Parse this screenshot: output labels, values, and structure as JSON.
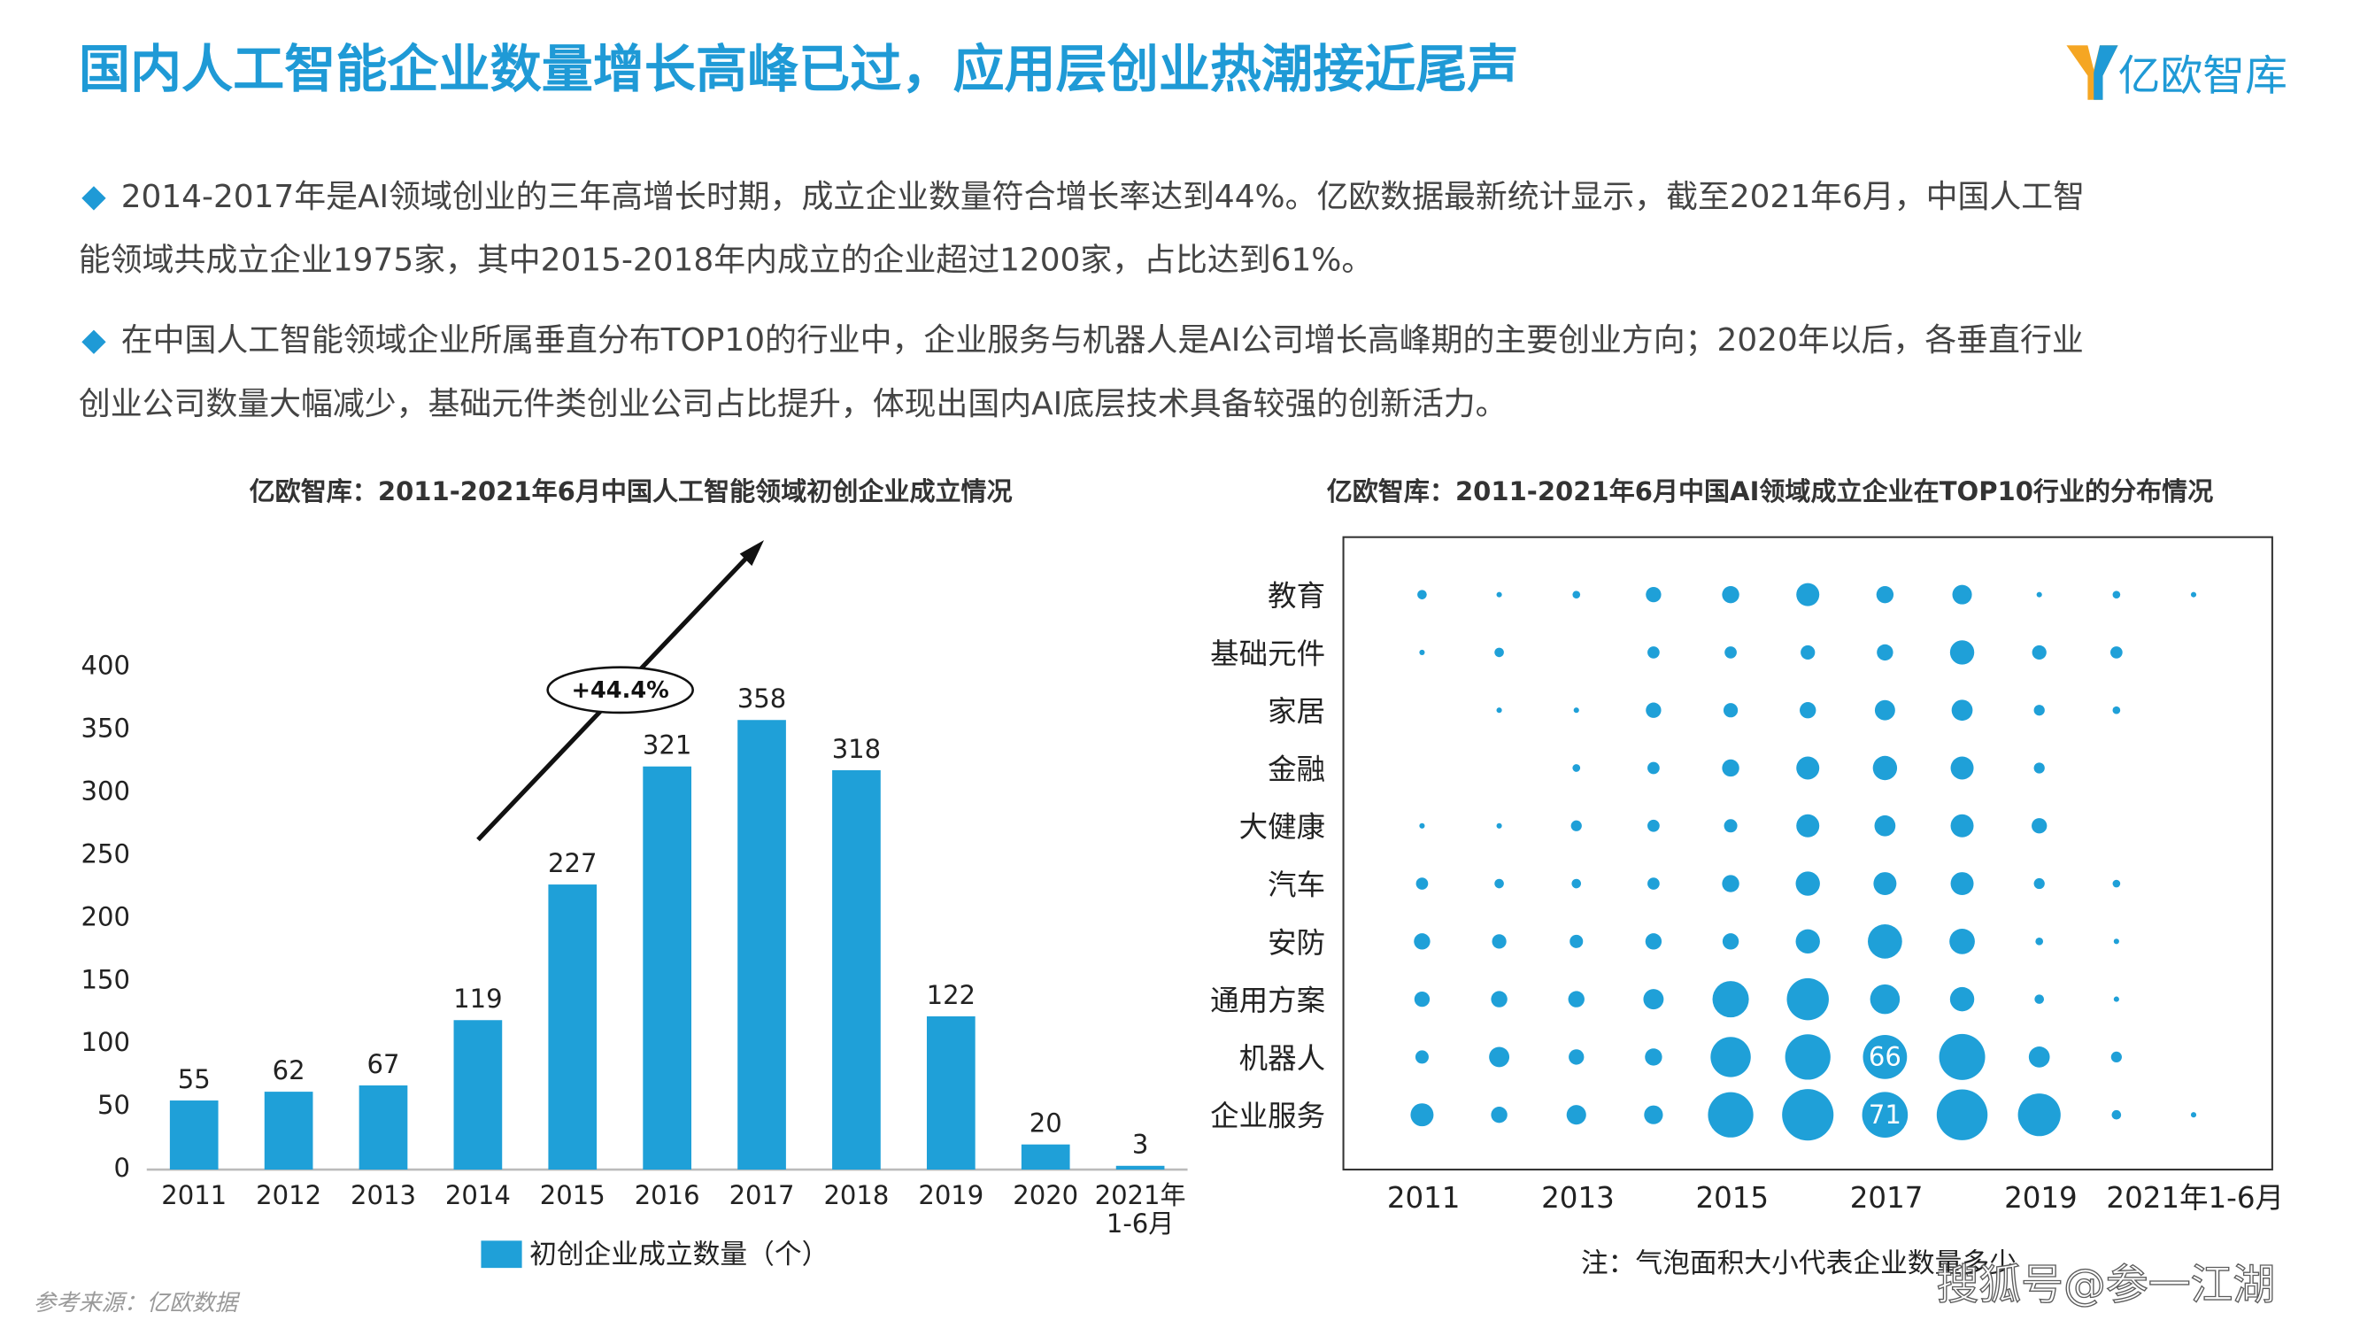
{
  "header": {
    "title": "国内人工智能企业数量增长高峰已过，应用层创业热潮接近尾声",
    "logo": "亿欧智库"
  },
  "bullets": [
    [
      "2014-2017年是AI领域创业的三年高增长时期，成立企业数量符合增长率达到44%。亿欧数据最新统计显示，截至2021年6月，中国人工智",
      "能领域共成立企业1975家，其中2015-2018年内成立的企业超过1200家，占比达到61%。"
    ],
    [
      "在中国人工智能领域企业所属垂直分布TOP10的行业中，企业服务与机器人是AI公司增长高峰期的主要创业方向；2020年以后，各垂直行业",
      "创业公司数量大幅减少，基础元件类创业公司占比提升，体现出国内AI底层技术具备较强的创新活力。"
    ]
  ],
  "chart_data": [
    {
      "type": "bar",
      "title": "亿欧智库：2011-2021年6月中国人工智能领域初创企业成立情况",
      "categories": [
        "2011",
        "2012",
        "2013",
        "2014",
        "2015",
        "2016",
        "2017",
        "2018",
        "2019",
        "2020",
        "2021年\n1-6月"
      ],
      "series": [
        {
          "name": "初创企业成立数量（个）",
          "color": "#1fa0d8",
          "values": [
            55,
            62,
            67,
            119,
            227,
            321,
            358,
            318,
            122,
            20,
            3
          ]
        }
      ],
      "ylim": [
        0,
        400
      ],
      "yticks": [
        0,
        50,
        100,
        150,
        200,
        250,
        300,
        350,
        400
      ],
      "annotation": "+44.4%",
      "legend": "bottom",
      "grid": false
    },
    {
      "type": "bubble",
      "title": "亿欧智库：2011-2021年6月中国AI领域成立企业在TOP10行业的分布情况",
      "categories": [
        "2011",
        null,
        "2013",
        null,
        "2015",
        null,
        "2017",
        null,
        "2019",
        null,
        "2021年1-6月"
      ],
      "series": [
        {
          "name": "教育",
          "color": "#1fa0d8",
          "values": [
            3,
            1,
            2,
            8,
            10,
            18,
            10,
            13,
            1,
            2,
            1
          ]
        },
        {
          "name": "基础元件",
          "color": "#1fa0d8",
          "values": [
            1,
            3,
            null,
            5,
            5,
            7,
            9,
            20,
            7,
            5,
            null
          ]
        },
        {
          "name": "家居",
          "color": "#1fa0d8",
          "values": [
            null,
            1,
            1,
            8,
            7,
            9,
            14,
            15,
            4,
            2,
            null
          ]
        },
        {
          "name": "金融",
          "color": "#1fa0d8",
          "values": [
            null,
            null,
            2,
            5,
            10,
            18,
            20,
            18,
            4,
            null,
            null
          ]
        },
        {
          "name": "大健康",
          "color": "#1fa0d8",
          "values": [
            1,
            1,
            4,
            5,
            6,
            18,
            15,
            18,
            8,
            null,
            null
          ]
        },
        {
          "name": "汽车",
          "color": "#1fa0d8",
          "values": [
            5,
            3,
            3,
            5,
            10,
            20,
            18,
            18,
            4,
            2,
            null
          ]
        },
        {
          "name": "安防",
          "color": "#1fa0d8",
          "values": [
            9,
            7,
            6,
            9,
            9,
            20,
            40,
            22,
            2,
            1,
            null
          ]
        },
        {
          "name": "通用方案",
          "color": "#1fa0d8",
          "values": [
            8,
            9,
            9,
            14,
            45,
            60,
            30,
            20,
            3,
            1,
            null
          ]
        },
        {
          "name": "机器人",
          "color": "#1fa0d8",
          "values": [
            6,
            14,
            8,
            10,
            55,
            70,
            66,
            72,
            15,
            4,
            null
          ],
          "value_labels": [
            null,
            null,
            null,
            null,
            null,
            null,
            "66",
            null,
            null,
            null,
            null
          ]
        },
        {
          "name": "企业服务",
          "color": "#1fa0d8",
          "values": [
            18,
            9,
            13,
            12,
            70,
            90,
            71,
            88,
            62,
            3,
            1
          ],
          "value_labels": [
            null,
            null,
            null,
            null,
            null,
            null,
            "71",
            null,
            null,
            null,
            null
          ]
        }
      ],
      "note": "注：气泡面积大小代表企业数量多少"
    }
  ],
  "source": "参考来源：亿欧数据",
  "watermark": "搜狐号@参一江湖"
}
